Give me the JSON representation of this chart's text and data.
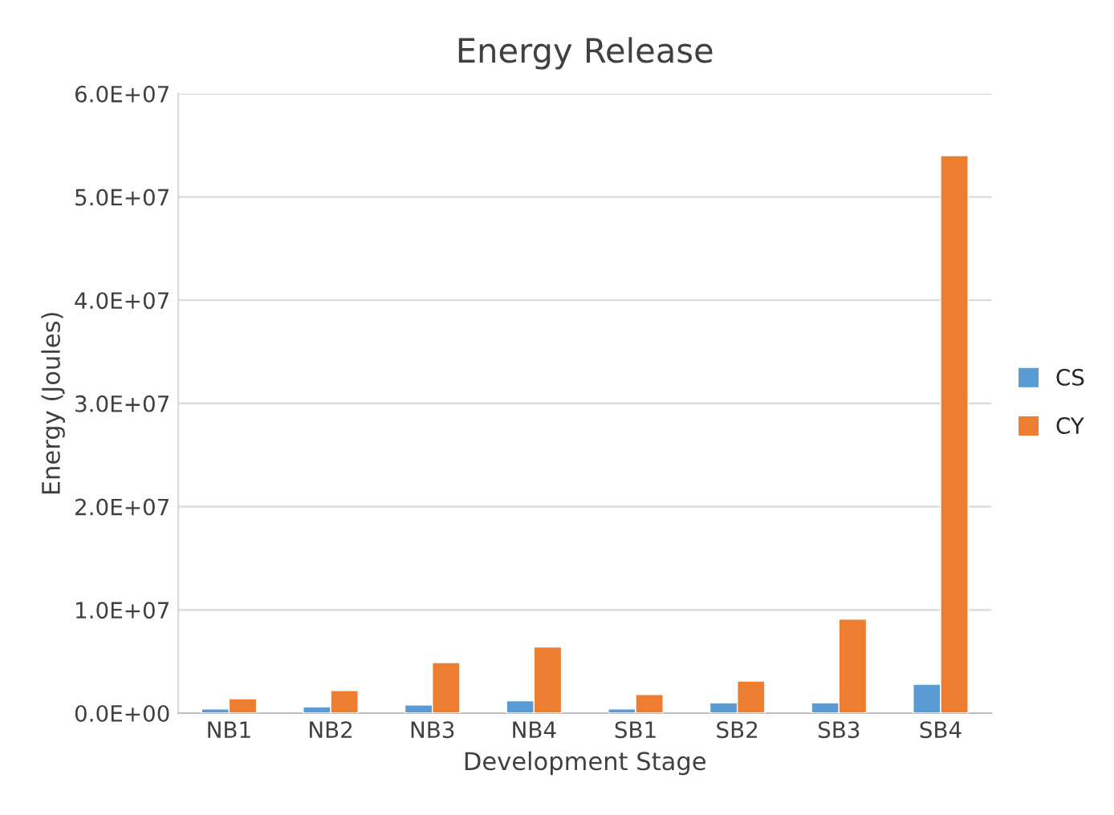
{
  "chart_data": {
    "type": "bar",
    "title": "Energy Release",
    "xlabel": "Development Stage",
    "ylabel": "Energy (Joules)",
    "categories": [
      "NB1",
      "NB2",
      "NB3",
      "NB4",
      "SB1",
      "SB2",
      "SB3",
      "SB4"
    ],
    "series": [
      {
        "name": "CS",
        "color": "#5b9bd5",
        "values": [
          400000,
          600000,
          800000,
          1200000,
          400000,
          1000000,
          1000000,
          2800000
        ]
      },
      {
        "name": "CY",
        "color": "#ed7d31",
        "values": [
          1400000,
          2200000,
          4900000,
          6400000,
          1800000,
          3100000,
          9100000,
          54000000
        ]
      }
    ],
    "ylim": [
      0,
      60000000
    ],
    "yticks": [
      {
        "value": 0,
        "label": "0.0E+00"
      },
      {
        "value": 10000000,
        "label": "1.0E+07"
      },
      {
        "value": 20000000,
        "label": "2.0E+07"
      },
      {
        "value": 30000000,
        "label": "3.0E+07"
      },
      {
        "value": 40000000,
        "label": "4.0E+07"
      },
      {
        "value": 50000000,
        "label": "5.0E+07"
      },
      {
        "value": 60000000,
        "label": "6.0E+07"
      }
    ],
    "grid": "y",
    "legend": "right"
  }
}
